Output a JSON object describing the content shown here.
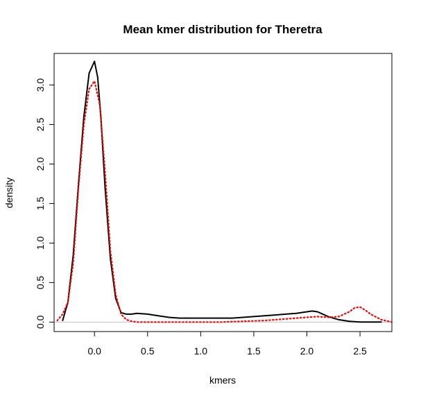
{
  "chart_data": {
    "type": "line",
    "title": "Mean kmer distribution for Theretra",
    "xlabel": "kmers",
    "ylabel": "density",
    "xlim": [
      -0.38,
      2.8
    ],
    "ylim": [
      -0.12,
      3.4
    ],
    "x_ticks": [
      0.0,
      0.5,
      1.0,
      1.5,
      2.0,
      2.5
    ],
    "x_tick_labels": [
      "0.0",
      "0.5",
      "1.0",
      "1.5",
      "2.0",
      "2.5"
    ],
    "y_ticks": [
      0.0,
      0.5,
      1.0,
      1.5,
      2.0,
      2.5,
      3.0
    ],
    "y_tick_labels": [
      "0.0",
      "0.5",
      "1.0",
      "1.5",
      "2.0",
      "2.5",
      "3.0"
    ],
    "grid": false,
    "legend": "none",
    "baseline": 0,
    "series": [
      {
        "style": "solid",
        "color": "#000000",
        "x": [
          -0.3,
          -0.25,
          -0.2,
          -0.15,
          -0.1,
          -0.05,
          0.0,
          0.03,
          0.06,
          0.1,
          0.15,
          0.2,
          0.25,
          0.3,
          0.35,
          0.4,
          0.5,
          0.6,
          0.7,
          0.8,
          0.9,
          1.0,
          1.1,
          1.2,
          1.3,
          1.4,
          1.5,
          1.6,
          1.7,
          1.8,
          1.9,
          2.0,
          2.05,
          2.1,
          2.15,
          2.2,
          2.3,
          2.4,
          2.5,
          2.6,
          2.7
        ],
        "y": [
          0.02,
          0.25,
          0.85,
          1.75,
          2.6,
          3.15,
          3.3,
          3.1,
          2.6,
          1.7,
          0.8,
          0.3,
          0.12,
          0.1,
          0.1,
          0.11,
          0.1,
          0.08,
          0.06,
          0.05,
          0.05,
          0.05,
          0.05,
          0.05,
          0.05,
          0.06,
          0.07,
          0.08,
          0.09,
          0.1,
          0.11,
          0.13,
          0.14,
          0.13,
          0.1,
          0.07,
          0.03,
          0.01,
          0.0,
          0.0,
          0.0
        ]
      },
      {
        "style": "dotted",
        "color": "#ff0000",
        "x": [
          -0.35,
          -0.3,
          -0.25,
          -0.2,
          -0.15,
          -0.1,
          -0.05,
          0.0,
          0.05,
          0.1,
          0.15,
          0.2,
          0.25,
          0.3,
          0.35,
          0.4,
          0.5,
          0.6,
          0.8,
          1.0,
          1.2,
          1.4,
          1.6,
          1.8,
          2.0,
          2.1,
          2.2,
          2.3,
          2.4,
          2.45,
          2.5,
          2.55,
          2.6,
          2.7,
          2.8
        ],
        "y": [
          0.02,
          0.1,
          0.25,
          0.75,
          1.7,
          2.5,
          2.95,
          3.05,
          2.75,
          1.9,
          0.9,
          0.35,
          0.1,
          0.03,
          0.01,
          0.0,
          0.0,
          0.0,
          0.0,
          0.0,
          0.0,
          0.01,
          0.02,
          0.04,
          0.06,
          0.07,
          0.06,
          0.07,
          0.13,
          0.18,
          0.19,
          0.15,
          0.1,
          0.03,
          0.0
        ]
      }
    ]
  }
}
